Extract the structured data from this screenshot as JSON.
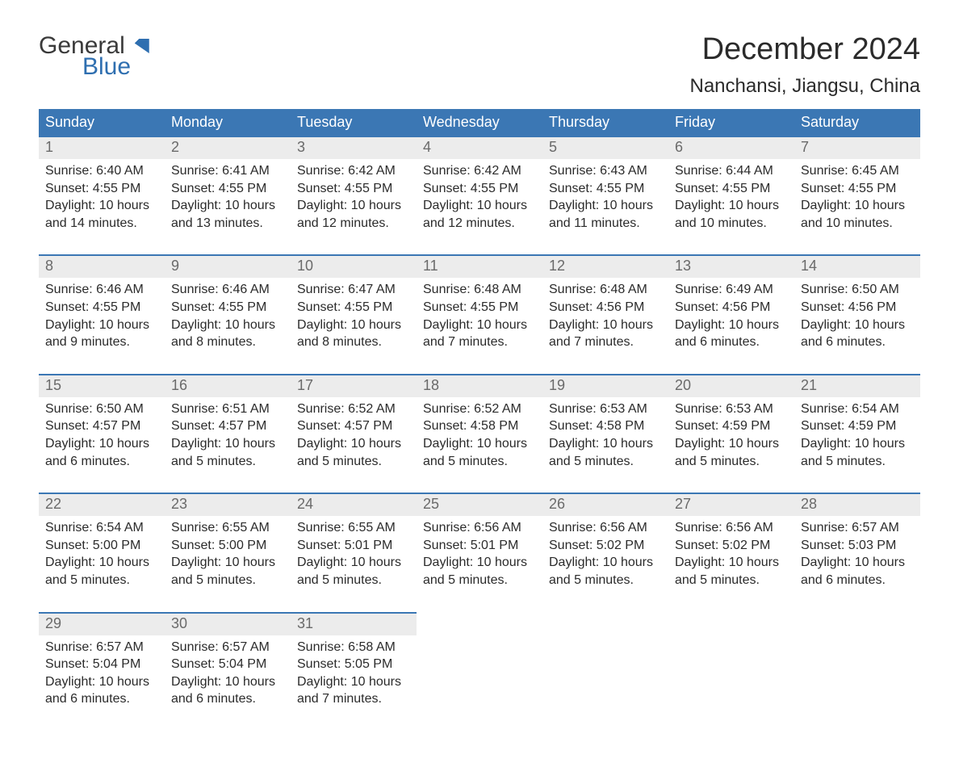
{
  "logo": {
    "word1": "General",
    "word2": "Blue"
  },
  "title": "December 2024",
  "location": "Nanchansi, Jiangsu, China",
  "colors": {
    "header_bg": "#3b77b4",
    "header_text": "#ffffff",
    "daynum_bg": "#ececec",
    "daynum_text": "#6a6a6a",
    "body_text": "#2b2b2b",
    "accent": "#2f6fb0"
  },
  "weekdays": [
    "Sunday",
    "Monday",
    "Tuesday",
    "Wednesday",
    "Thursday",
    "Friday",
    "Saturday"
  ],
  "days": [
    {
      "n": 1,
      "sr": "6:40 AM",
      "ss": "4:55 PM",
      "dl": "10 hours and 14 minutes."
    },
    {
      "n": 2,
      "sr": "6:41 AM",
      "ss": "4:55 PM",
      "dl": "10 hours and 13 minutes."
    },
    {
      "n": 3,
      "sr": "6:42 AM",
      "ss": "4:55 PM",
      "dl": "10 hours and 12 minutes."
    },
    {
      "n": 4,
      "sr": "6:42 AM",
      "ss": "4:55 PM",
      "dl": "10 hours and 12 minutes."
    },
    {
      "n": 5,
      "sr": "6:43 AM",
      "ss": "4:55 PM",
      "dl": "10 hours and 11 minutes."
    },
    {
      "n": 6,
      "sr": "6:44 AM",
      "ss": "4:55 PM",
      "dl": "10 hours and 10 minutes."
    },
    {
      "n": 7,
      "sr": "6:45 AM",
      "ss": "4:55 PM",
      "dl": "10 hours and 10 minutes."
    },
    {
      "n": 8,
      "sr": "6:46 AM",
      "ss": "4:55 PM",
      "dl": "10 hours and 9 minutes."
    },
    {
      "n": 9,
      "sr": "6:46 AM",
      "ss": "4:55 PM",
      "dl": "10 hours and 8 minutes."
    },
    {
      "n": 10,
      "sr": "6:47 AM",
      "ss": "4:55 PM",
      "dl": "10 hours and 8 minutes."
    },
    {
      "n": 11,
      "sr": "6:48 AM",
      "ss": "4:55 PM",
      "dl": "10 hours and 7 minutes."
    },
    {
      "n": 12,
      "sr": "6:48 AM",
      "ss": "4:56 PM",
      "dl": "10 hours and 7 minutes."
    },
    {
      "n": 13,
      "sr": "6:49 AM",
      "ss": "4:56 PM",
      "dl": "10 hours and 6 minutes."
    },
    {
      "n": 14,
      "sr": "6:50 AM",
      "ss": "4:56 PM",
      "dl": "10 hours and 6 minutes."
    },
    {
      "n": 15,
      "sr": "6:50 AM",
      "ss": "4:57 PM",
      "dl": "10 hours and 6 minutes."
    },
    {
      "n": 16,
      "sr": "6:51 AM",
      "ss": "4:57 PM",
      "dl": "10 hours and 5 minutes."
    },
    {
      "n": 17,
      "sr": "6:52 AM",
      "ss": "4:57 PM",
      "dl": "10 hours and 5 minutes."
    },
    {
      "n": 18,
      "sr": "6:52 AM",
      "ss": "4:58 PM",
      "dl": "10 hours and 5 minutes."
    },
    {
      "n": 19,
      "sr": "6:53 AM",
      "ss": "4:58 PM",
      "dl": "10 hours and 5 minutes."
    },
    {
      "n": 20,
      "sr": "6:53 AM",
      "ss": "4:59 PM",
      "dl": "10 hours and 5 minutes."
    },
    {
      "n": 21,
      "sr": "6:54 AM",
      "ss": "4:59 PM",
      "dl": "10 hours and 5 minutes."
    },
    {
      "n": 22,
      "sr": "6:54 AM",
      "ss": "5:00 PM",
      "dl": "10 hours and 5 minutes."
    },
    {
      "n": 23,
      "sr": "6:55 AM",
      "ss": "5:00 PM",
      "dl": "10 hours and 5 minutes."
    },
    {
      "n": 24,
      "sr": "6:55 AM",
      "ss": "5:01 PM",
      "dl": "10 hours and 5 minutes."
    },
    {
      "n": 25,
      "sr": "6:56 AM",
      "ss": "5:01 PM",
      "dl": "10 hours and 5 minutes."
    },
    {
      "n": 26,
      "sr": "6:56 AM",
      "ss": "5:02 PM",
      "dl": "10 hours and 5 minutes."
    },
    {
      "n": 27,
      "sr": "6:56 AM",
      "ss": "5:02 PM",
      "dl": "10 hours and 5 minutes."
    },
    {
      "n": 28,
      "sr": "6:57 AM",
      "ss": "5:03 PM",
      "dl": "10 hours and 6 minutes."
    },
    {
      "n": 29,
      "sr": "6:57 AM",
      "ss": "5:04 PM",
      "dl": "10 hours and 6 minutes."
    },
    {
      "n": 30,
      "sr": "6:57 AM",
      "ss": "5:04 PM",
      "dl": "10 hours and 6 minutes."
    },
    {
      "n": 31,
      "sr": "6:58 AM",
      "ss": "5:05 PM",
      "dl": "10 hours and 7 minutes."
    }
  ],
  "labels": {
    "sunrise": "Sunrise:",
    "sunset": "Sunset:",
    "daylight": "Daylight:"
  },
  "layout": {
    "first_weekday_index": 0,
    "weeks": 5
  }
}
